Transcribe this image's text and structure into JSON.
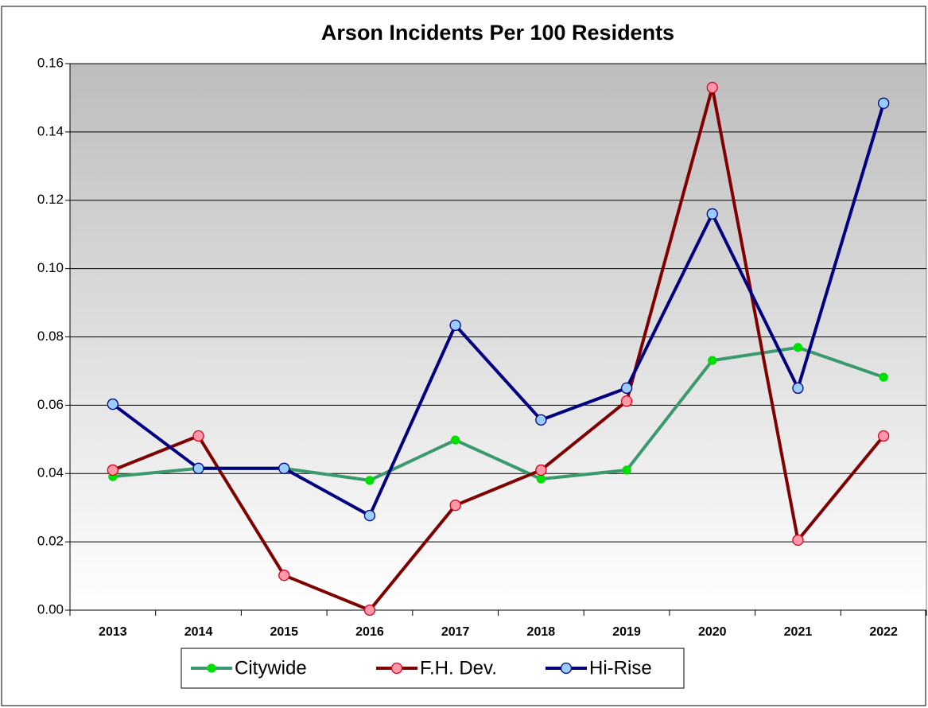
{
  "chart_data": {
    "type": "line",
    "title": "Arson Incidents Per 100 Residents",
    "categories": [
      "2013",
      "2014",
      "2015",
      "2016",
      "2017",
      "2018",
      "2019",
      "2020",
      "2021",
      "2022"
    ],
    "series": [
      {
        "name": "Citywide",
        "color": "#3a9a6e",
        "marker_color": "#00e000",
        "marker_edge": "#00e000",
        "values": [
          0.0391,
          0.0415,
          0.0415,
          0.038,
          0.0498,
          0.0384,
          0.041,
          0.0731,
          0.0769,
          0.0682
        ]
      },
      {
        "name": "F.H. Dev.",
        "color": "#800000",
        "marker_color": "#ff99aa",
        "marker_edge": "#e00020",
        "values": [
          0.041,
          0.051,
          0.0102,
          0,
          0.0307,
          0.041,
          0.0612,
          0.153,
          0.0205,
          0.051
        ]
      },
      {
        "name": "Hi-Rise",
        "color": "#000080",
        "marker_color": "#99ccff",
        "marker_edge": "#000080",
        "values": [
          0.0603,
          0.0415,
          0.0415,
          0.0277,
          0.0834,
          0.0557,
          0.065,
          0.116,
          0.065,
          0.1484
        ]
      }
    ],
    "ylim": [
      0,
      0.16
    ],
    "yticks": [
      {
        "value": 0,
        "label": "0.00"
      },
      {
        "value": 0.02,
        "label": "0.02"
      },
      {
        "value": 0.04,
        "label": "0.04"
      },
      {
        "value": 0.06,
        "label": "0.06"
      },
      {
        "value": 0.08,
        "label": "0.08"
      },
      {
        "value": 0.1,
        "label": "0.10"
      },
      {
        "value": 0.12,
        "label": "0.12"
      },
      {
        "value": 0.14,
        "label": "0.14"
      },
      {
        "value": 0.16,
        "label": "0.16"
      }
    ],
    "grid": true,
    "legend": "bottom"
  }
}
